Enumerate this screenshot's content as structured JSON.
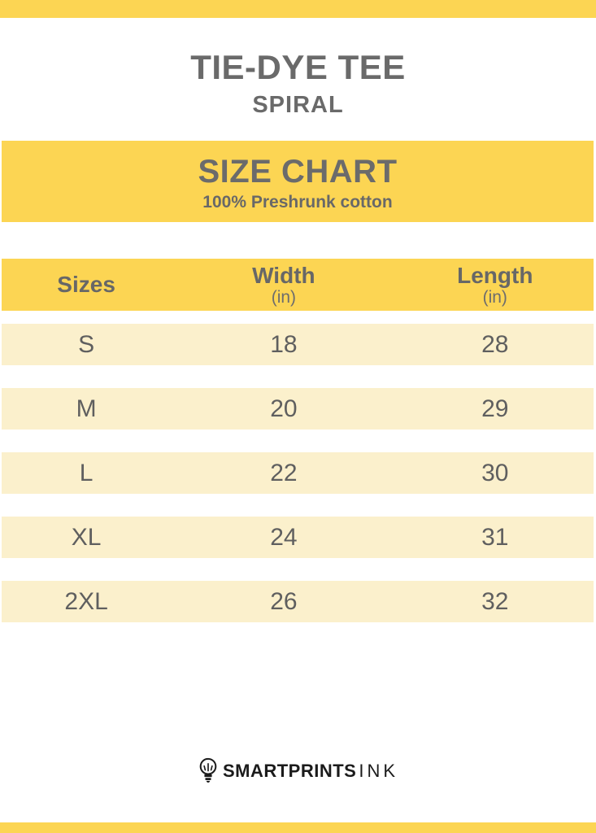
{
  "header": {
    "title": "TIE-DYE TEE",
    "variant": "SPIRAL"
  },
  "banner": {
    "heading": "SIZE CHART",
    "subheading": "100% Preshrunk cotton"
  },
  "table": {
    "columns": [
      {
        "label": "Sizes",
        "unit": ""
      },
      {
        "label": "Width",
        "unit": "(in)"
      },
      {
        "label": "Length",
        "unit": "(in)"
      }
    ],
    "rows": [
      {
        "size": "S",
        "width": "18",
        "length": "28"
      },
      {
        "size": "M",
        "width": "20",
        "length": "29"
      },
      {
        "size": "L",
        "width": "22",
        "length": "30"
      },
      {
        "size": "XL",
        "width": "24",
        "length": "31"
      },
      {
        "size": "2XL",
        "width": "26",
        "length": "32"
      }
    ]
  },
  "footer": {
    "brand_name": "SMARTPRINTS",
    "brand_suffix": "INK",
    "logo_icon": "lightbulb-icon"
  },
  "colors": {
    "accent_yellow": "#FCD553",
    "row_cream": "#FBF0CC",
    "heading_gray": "#6a6a6a",
    "value_gray": "#5f5f5f",
    "logo_black": "#1b1b1b"
  }
}
